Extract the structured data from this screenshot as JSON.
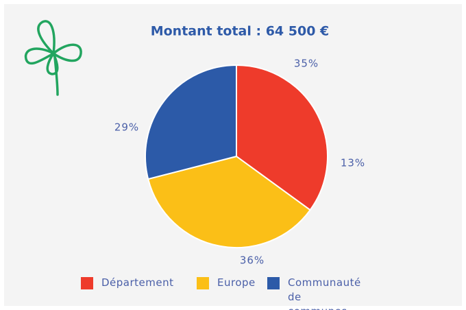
{
  "chart_data": {
    "type": "pie",
    "title": "Montant total : 64 500 €",
    "categories": [
      "Département",
      "Europe",
      "Communauté de communes"
    ],
    "values": [
      35,
      36,
      29
    ],
    "value_labels": [
      "35%",
      "36%",
      "29%"
    ],
    "colors": [
      "#ee3b2b",
      "#fbbf17",
      "#2c5aa8"
    ],
    "annotations": [
      "13%"
    ],
    "legend": "bottom"
  }
}
